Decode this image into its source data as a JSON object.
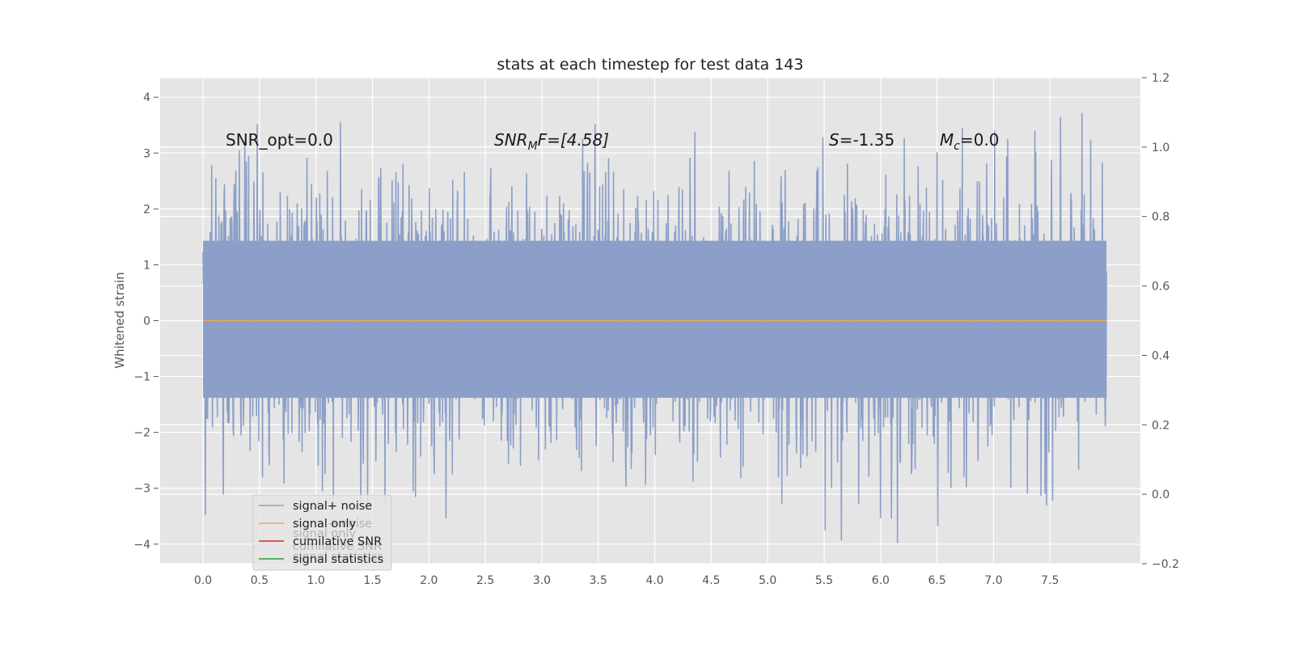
{
  "chart_data": {
    "type": "line",
    "title": "stats at each timestep for test data 143",
    "ylabel": "Whitened strain",
    "xlabel": "",
    "xlim": [
      -0.38,
      8.3
    ],
    "ylim": [
      -4.35,
      4.35
    ],
    "y2lim": [
      -0.2,
      1.2
    ],
    "grid": true,
    "legend_placement": "lower-left",
    "x_ticks": [
      "0.0",
      "0.5",
      "1.0",
      "1.5",
      "2.0",
      "2.5",
      "3.0",
      "3.5",
      "4.0",
      "4.5",
      "5.0",
      "5.5",
      "6.0",
      "6.5",
      "7.0",
      "7.5"
    ],
    "y_ticks": [
      "−4",
      "−3",
      "−2",
      "−1",
      "0",
      "1",
      "2",
      "3",
      "4"
    ],
    "y2_ticks": [
      "−0.2",
      "0.0",
      "0.2",
      "0.4",
      "0.6",
      "0.8",
      "1.0",
      "1.2"
    ],
    "series": [
      {
        "name": "signal+ noise",
        "color": "#8c9fc8",
        "x_range": [
          0.0,
          8.0
        ],
        "envelope_typical": [
          -2.3,
          2.6
        ],
        "extremes": [
          -3.97,
          4.0
        ]
      },
      {
        "name": "signal only",
        "color": "#f0a84c",
        "x_range": [
          0.0,
          8.0
        ],
        "values": [
          0.0
        ]
      },
      {
        "name": "cumilative SNR",
        "color": "#d62728"
      },
      {
        "name": "signal statistics",
        "color": "#2ca02c"
      }
    ],
    "annotations": [
      {
        "x": 0.2,
        "y": 3.1,
        "label": "SNR_opt=0.0"
      },
      {
        "x": 2.6,
        "y": 3.1,
        "label_main": "SNR",
        "label_sub": "M",
        "label_rest": "F=[4.58]"
      },
      {
        "x": 5.6,
        "y": 3.1,
        "label_main": "S",
        "label_rest": "=-1.35"
      },
      {
        "x": 6.6,
        "y": 3.1,
        "label_main": "M",
        "label_sub": "c",
        "label_rest": "=0.0"
      }
    ],
    "ghost_legend": [
      "signal+ noise",
      "signal only",
      "cumilative SNR",
      "signal statistics"
    ]
  }
}
